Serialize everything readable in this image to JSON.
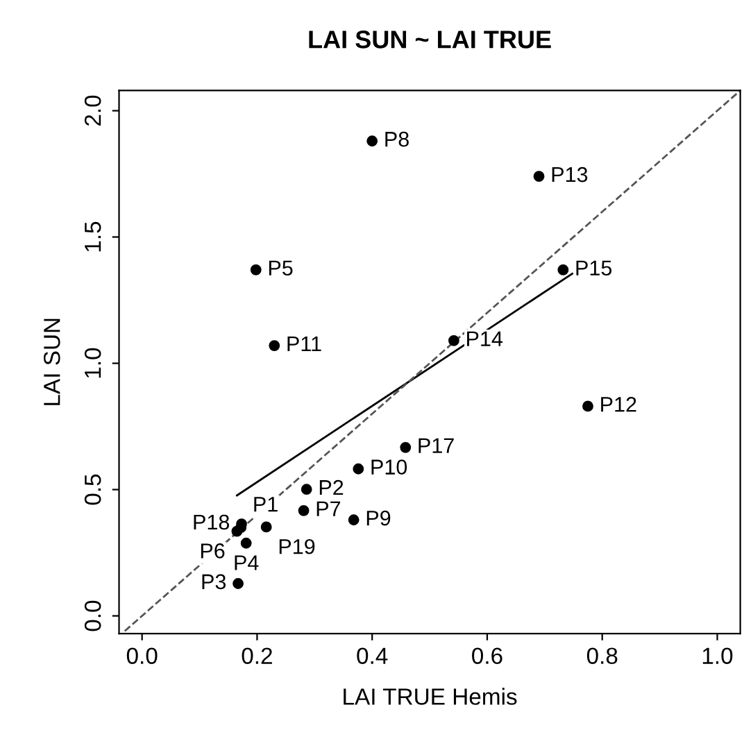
{
  "chart_data": {
    "type": "scatter",
    "title": "LAI SUN ~ LAI TRUE",
    "xlabel": "LAI TRUE Hemis",
    "ylabel": "LAI SUN",
    "xlim": [
      -0.04,
      1.04
    ],
    "ylim": [
      -0.07,
      2.08
    ],
    "xticks": [
      {
        "value": 0,
        "label": "0.0"
      },
      {
        "value": 0.2,
        "label": "0.2"
      },
      {
        "value": 0.4,
        "label": "0.4"
      },
      {
        "value": 0.6,
        "label": "0.6"
      },
      {
        "value": 0.8,
        "label": "0.8"
      },
      {
        "value": 1,
        "label": "1.0"
      }
    ],
    "yticks": [
      {
        "value": 0,
        "label": "0.0"
      },
      {
        "value": 0.5,
        "label": "0.5"
      },
      {
        "value": 1,
        "label": "1.0"
      },
      {
        "value": 1.5,
        "label": "1.5"
      },
      {
        "value": 2,
        "label": "2.0"
      }
    ],
    "grid": false,
    "series": [
      {
        "marker": "circle",
        "color": "#000000",
        "x": [
          0.4,
          0.69,
          0.198,
          0.732,
          0.23,
          0.542,
          0.775,
          0.458,
          0.376,
          0.286,
          0.281,
          0.368,
          0.173,
          0.172,
          0.165,
          0.216,
          0.181,
          0.167
        ],
        "values": [
          1.88,
          1.74,
          1.37,
          1.37,
          1.07,
          1.09,
          0.83,
          0.667,
          0.582,
          0.501,
          0.417,
          0.38,
          0.364,
          0.35,
          0.335,
          0.352,
          0.288,
          0.128
        ]
      },
      {
        "type": "line",
        "marker": "none",
        "color": "#000000",
        "line_style": "solid",
        "x": [
          0.165,
          0.748
        ],
        "values": [
          0.477,
          1.355
        ]
      },
      {
        "type": "line",
        "marker": "none",
        "color": "#555555",
        "line_style": "dashed",
        "x": [
          -0.03,
          1.04
        ],
        "values": [
          -0.06,
          2.08
        ]
      }
    ],
    "annotations": [
      {
        "text": "P8",
        "x": 0.4,
        "y": 1.88
      },
      {
        "text": "P13",
        "x": 0.69,
        "y": 1.74
      },
      {
        "text": "P5",
        "x": 0.198,
        "y": 1.37
      },
      {
        "text": "P15",
        "x": 0.732,
        "y": 1.37
      },
      {
        "text": "P11",
        "x": 0.23,
        "y": 1.07
      },
      {
        "text": "P14",
        "x": 0.542,
        "y": 1.09
      },
      {
        "text": "P12",
        "x": 0.775,
        "y": 0.83
      },
      {
        "text": "P17",
        "x": 0.458,
        "y": 0.667
      },
      {
        "text": "P10",
        "x": 0.376,
        "y": 0.582
      },
      {
        "text": "P2",
        "x": 0.286,
        "y": 0.501
      },
      {
        "text": "P7",
        "x": 0.281,
        "y": 0.417
      },
      {
        "text": "P9",
        "x": 0.368,
        "y": 0.38
      },
      {
        "text": "P18",
        "x": 0.173,
        "y": 0.364
      },
      {
        "text": "P1",
        "x": 0.172,
        "y": 0.35
      },
      {
        "text": "P6",
        "x": 0.165,
        "y": 0.335
      },
      {
        "text": "P19",
        "x": 0.216,
        "y": 0.352
      },
      {
        "text": "P4",
        "x": 0.181,
        "y": 0.288
      },
      {
        "text": "P3",
        "x": 0.167,
        "y": 0.128
      }
    ]
  }
}
